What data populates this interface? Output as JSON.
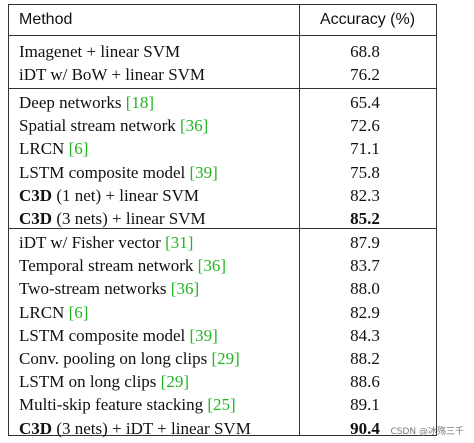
{
  "header": {
    "method": "Method",
    "accuracy": "Accuracy (%)"
  },
  "sections": [
    {
      "rows": [
        {
          "method_pre": "Imagenet + linear SVM",
          "accuracy": "68.8"
        },
        {
          "method_pre": "iDT w/ BoW + linear SVM",
          "accuracy": "76.2"
        }
      ]
    },
    {
      "rows": [
        {
          "method_pre": "Deep networks ",
          "ref": "[18]",
          "accuracy": "65.4"
        },
        {
          "method_pre": "Spatial stream network ",
          "ref": "[36]",
          "accuracy": "72.6"
        },
        {
          "method_pre": "LRCN ",
          "ref": "[6]",
          "accuracy": "71.1"
        },
        {
          "method_pre": "LSTM composite model ",
          "ref": "[39]",
          "accuracy": "75.8"
        },
        {
          "method_bold": "C3D",
          "method_post": " (1 net) + linear SVM",
          "accuracy": "82.3"
        },
        {
          "method_bold": "C3D",
          "method_post": " (3 nets) + linear SVM",
          "accuracy": "85.2",
          "accuracy_bold": true
        }
      ]
    },
    {
      "rows": [
        {
          "method_pre": "iDT w/ Fisher vector ",
          "ref": "[31]",
          "accuracy": "87.9"
        },
        {
          "method_pre": "Temporal stream network ",
          "ref": "[36]",
          "accuracy": "83.7"
        },
        {
          "method_pre": "Two-stream networks ",
          "ref": "[36]",
          "accuracy": "88.0"
        },
        {
          "method_pre": "LRCN ",
          "ref": "[6]",
          "accuracy": "82.9"
        },
        {
          "method_pre": "LSTM composite model ",
          "ref": "[39]",
          "accuracy": "84.3"
        },
        {
          "method_pre": "Conv. pooling on long clips ",
          "ref": "[29]",
          "accuracy": "88.2"
        },
        {
          "method_pre": "LSTM on long clips ",
          "ref": "[29]",
          "accuracy": "88.6"
        },
        {
          "method_pre": "Multi-skip feature stacking ",
          "ref": "[25]",
          "accuracy": "89.1"
        },
        {
          "method_bold": "C3D",
          "method_post": " (3 nets) + iDT + linear SVM",
          "accuracy": "90.4",
          "accuracy_bold": true
        }
      ]
    }
  ],
  "watermark": "CSDN @冰殇三千",
  "colors": {
    "reference": "#22b422",
    "border": "#333333"
  }
}
